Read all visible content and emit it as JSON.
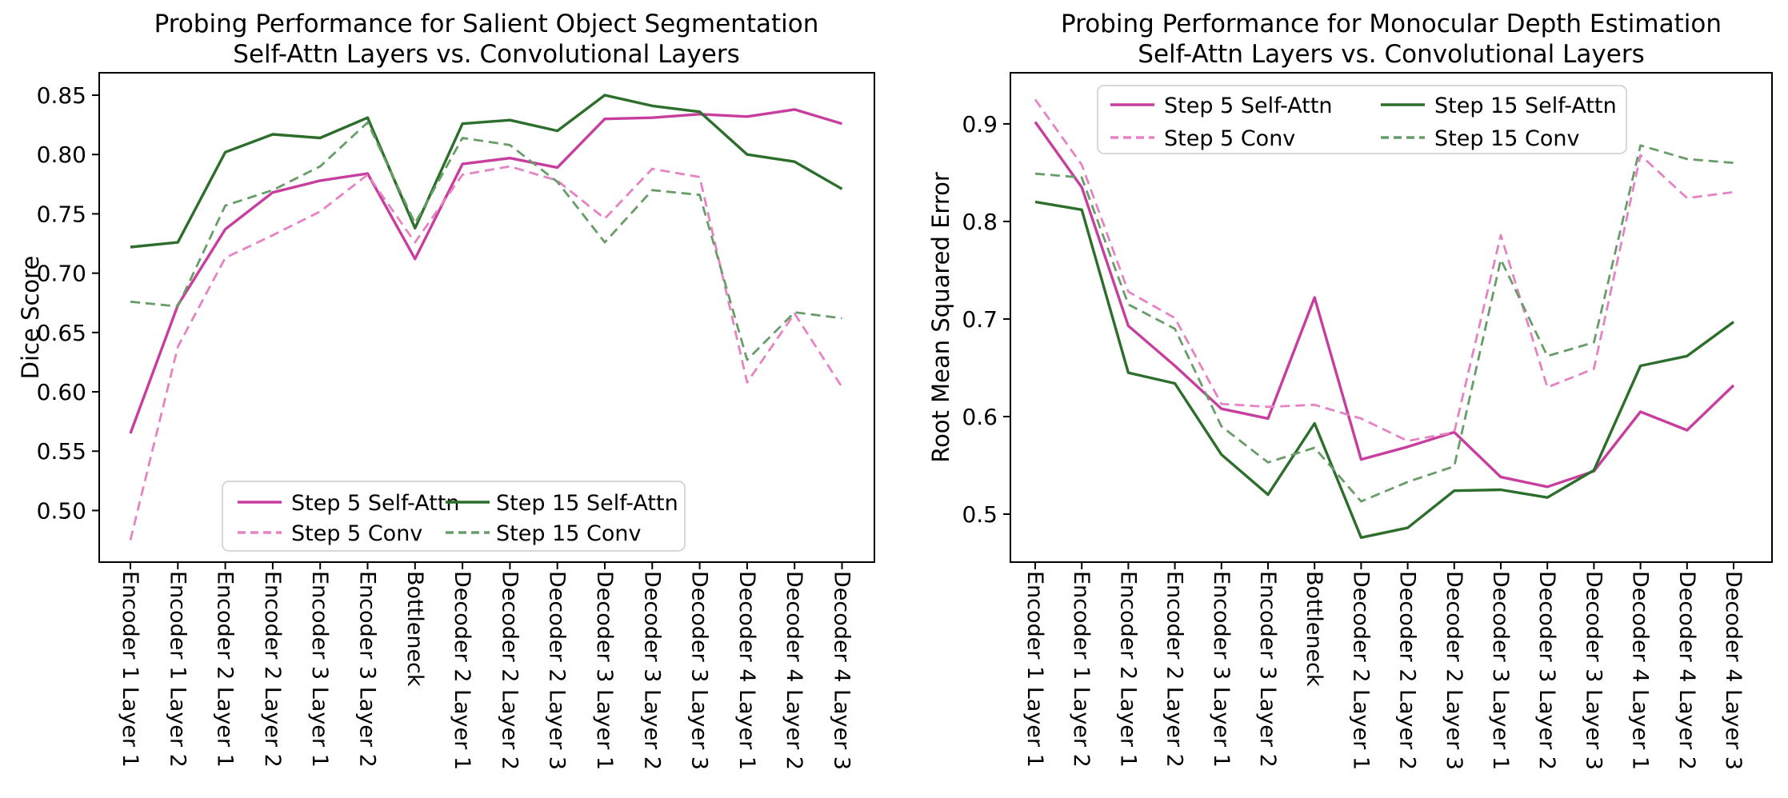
{
  "figure": {
    "background": "#ffffff",
    "text_color": "#000000",
    "spine_color": "#000000"
  },
  "chart_data": [
    {
      "id": "salient-object-segmentation",
      "type": "line",
      "title": "Probing Performance for Salient Object Segmentation",
      "subtitle": "Self-Attn Layers vs. Convolutional Layers",
      "xlabel": "",
      "ylabel": "Dice Score",
      "grid": false,
      "legend_position": "lower center",
      "x_tick_rotation": "vertical",
      "ylim": [
        0.4565,
        0.8689
      ],
      "yticks": [
        {
          "value": 0.5,
          "label": "0.50"
        },
        {
          "value": 0.55,
          "label": "0.55"
        },
        {
          "value": 0.6,
          "label": "0.60"
        },
        {
          "value": 0.65,
          "label": "0.65"
        },
        {
          "value": 0.7,
          "label": "0.70"
        },
        {
          "value": 0.75,
          "label": "0.75"
        },
        {
          "value": 0.8,
          "label": "0.80"
        },
        {
          "value": 0.85,
          "label": "0.85"
        }
      ],
      "categories": [
        "Encoder 1 Layer 1",
        "Encoder 1 Layer 2",
        "Encoder 2 Layer 1",
        "Encoder 2 Layer 2",
        "Encoder 3 Layer 1",
        "Encoder 3 Layer 2",
        "Bottleneck",
        "Decoder 2 Layer 1",
        "Decoder 2 Layer 2",
        "Decoder 2 Layer 3",
        "Decoder 3 Layer 1",
        "Decoder 3 Layer 2",
        "Decoder 3 Layer 3",
        "Decoder 4 Layer 1",
        "Decoder 4 Layer 2",
        "Decoder 4 Layer 3"
      ],
      "series": [
        {
          "name": "Step 5 Self-Attn",
          "color": "#C73E9E",
          "style": "solid",
          "values": [
            0.565,
            0.673,
            0.737,
            0.768,
            0.778,
            0.784,
            0.712,
            0.792,
            0.797,
            0.789,
            0.83,
            0.831,
            0.834,
            0.832,
            0.838,
            0.826
          ]
        },
        {
          "name": "Step 5 Conv",
          "color": "#E583C3",
          "style": "dashed",
          "values": [
            0.475,
            0.638,
            0.713,
            0.732,
            0.752,
            0.783,
            0.726,
            0.783,
            0.79,
            0.778,
            0.746,
            0.788,
            0.781,
            0.608,
            0.666,
            0.604
          ]
        },
        {
          "name": "Step 15 Self-Attn",
          "color": "#2D6E2D",
          "style": "solid",
          "values": [
            0.722,
            0.726,
            0.802,
            0.817,
            0.814,
            0.831,
            0.738,
            0.826,
            0.829,
            0.82,
            0.85,
            0.841,
            0.836,
            0.8,
            0.794,
            0.771
          ]
        },
        {
          "name": "Step 15 Conv",
          "color": "#689C68",
          "style": "dashed",
          "values": [
            0.676,
            0.672,
            0.757,
            0.77,
            0.79,
            0.827,
            0.742,
            0.814,
            0.808,
            0.777,
            0.726,
            0.77,
            0.766,
            0.627,
            0.667,
            0.662
          ]
        }
      ]
    },
    {
      "id": "monocular-depth-estimation",
      "type": "line",
      "title": "Probing Performance for Monocular Depth Estimation",
      "subtitle": "Self-Attn Layers vs. Convolutional Layers",
      "xlabel": "",
      "ylabel": "Root Mean Squared Error",
      "grid": false,
      "legend_position": "upper left",
      "x_tick_rotation": "vertical",
      "ylim": [
        0.4508,
        0.9524
      ],
      "yticks": [
        {
          "value": 0.5,
          "label": "0.5"
        },
        {
          "value": 0.6,
          "label": "0.6"
        },
        {
          "value": 0.7,
          "label": "0.7"
        },
        {
          "value": 0.8,
          "label": "0.8"
        },
        {
          "value": 0.9,
          "label": "0.9"
        }
      ],
      "categories": [
        "Encoder 1 Layer 1",
        "Encoder 1 Layer 2",
        "Encoder 2 Layer 1",
        "Encoder 2 Layer 2",
        "Encoder 3 Layer 1",
        "Encoder 3 Layer 2",
        "Bottleneck",
        "Decoder 2 Layer 1",
        "Decoder 2 Layer 2",
        "Decoder 2 Layer 3",
        "Decoder 3 Layer 1",
        "Decoder 3 Layer 2",
        "Decoder 3 Layer 3",
        "Decoder 4 Layer 1",
        "Decoder 4 Layer 2",
        "Decoder 4 Layer 3"
      ],
      "series": [
        {
          "name": "Step 5 Self-Attn",
          "color": "#C73E9E",
          "style": "solid",
          "values": [
            0.902,
            0.835,
            0.693,
            0.652,
            0.608,
            0.598,
            0.722,
            0.556,
            0.569,
            0.584,
            0.538,
            0.528,
            0.544,
            0.605,
            0.586,
            0.632
          ]
        },
        {
          "name": "Step 5 Conv",
          "color": "#E583C3",
          "style": "dashed",
          "values": [
            0.925,
            0.858,
            0.728,
            0.701,
            0.613,
            0.61,
            0.612,
            0.598,
            0.575,
            0.584,
            0.786,
            0.63,
            0.649,
            0.868,
            0.824,
            0.83
          ]
        },
        {
          "name": "Step 15 Self-Attn",
          "color": "#2D6E2D",
          "style": "solid",
          "values": [
            0.82,
            0.812,
            0.645,
            0.634,
            0.561,
            0.52,
            0.593,
            0.476,
            0.486,
            0.524,
            0.525,
            0.517,
            0.545,
            0.652,
            0.662,
            0.697
          ]
        },
        {
          "name": "Step 15 Conv",
          "color": "#689C68",
          "style": "dashed",
          "values": [
            0.849,
            0.845,
            0.715,
            0.69,
            0.59,
            0.553,
            0.568,
            0.513,
            0.533,
            0.549,
            0.761,
            0.662,
            0.676,
            0.878,
            0.864,
            0.86
          ]
        }
      ]
    }
  ]
}
